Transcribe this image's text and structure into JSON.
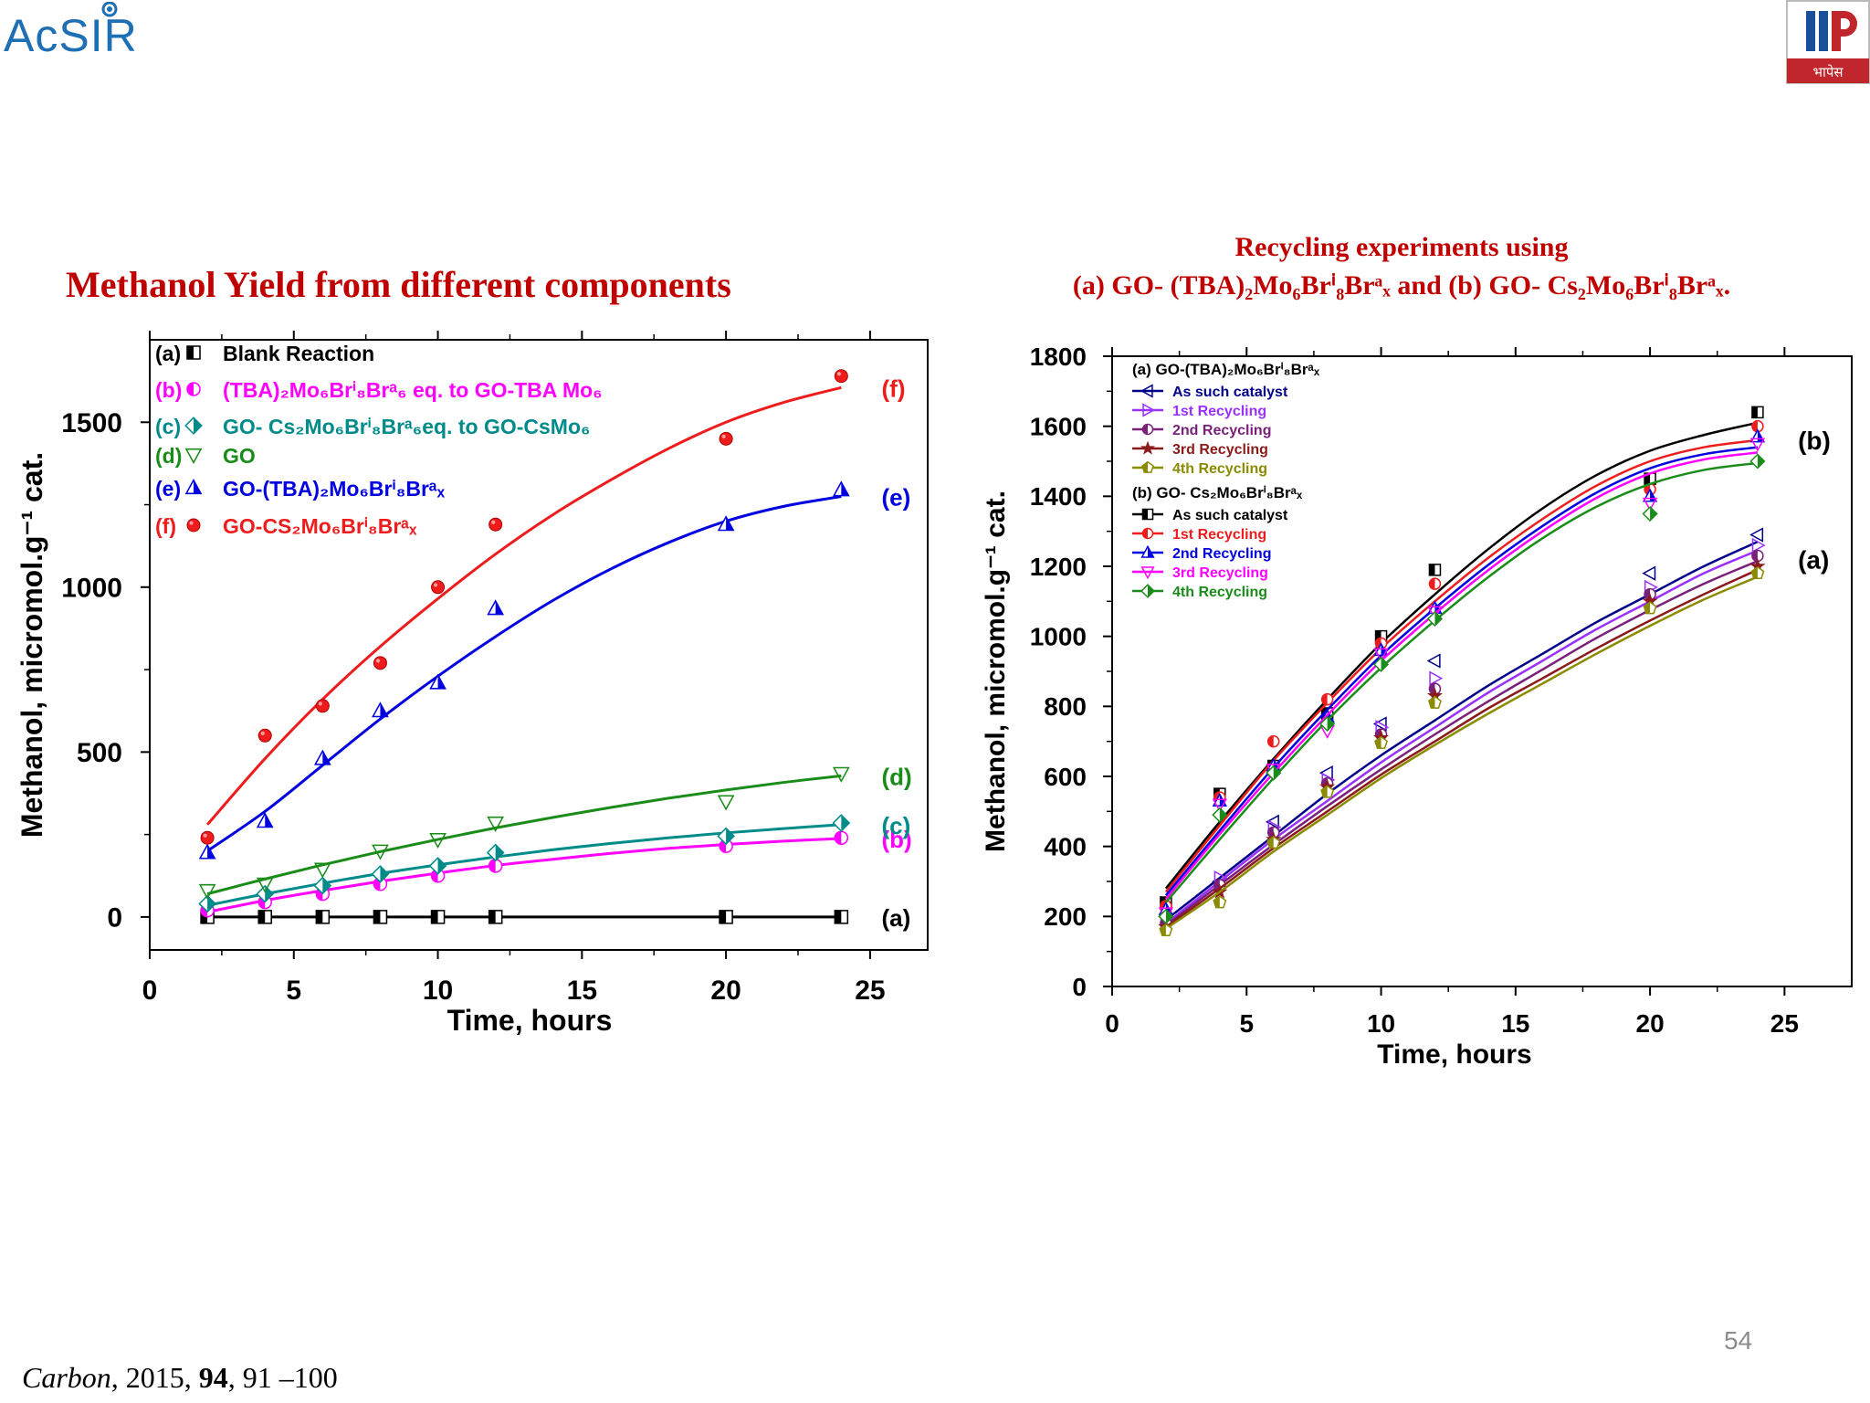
{
  "header": {
    "logo_left_text": "AcSIR",
    "logo_right_text": "भापेस"
  },
  "colors": {
    "title_red": "#c00000",
    "black": "#000000",
    "magenta": "#ff00ff",
    "teal": "#008b8b",
    "green": "#1a8c1a",
    "blue": "#0000e0",
    "red": "#ee1c1c",
    "navy": "#00008b",
    "violet": "#9b30ff",
    "purple": "#7a1f7a",
    "maroon": "#8b1a1a",
    "olive": "#8b8b00"
  },
  "slide": {
    "page_number": "54",
    "citation": {
      "journal": "Carbon",
      "year": ", 2015, ",
      "volume": "94",
      "pages": ", 91 –100"
    }
  },
  "chart_data": [
    {
      "type": "scatter",
      "title": "Methanol Yield from different components",
      "xlabel": "Time, hours",
      "ylabel": "Methanol, micromol.g⁻¹ cat.",
      "xlim": [
        0,
        27
      ],
      "ylim": [
        -100,
        1750
      ],
      "xticks": [
        0,
        5,
        10,
        15,
        20,
        25
      ],
      "yticks": [
        0,
        500,
        1000,
        1500
      ],
      "grid": false,
      "legend_position": "top-left",
      "series": [
        {
          "key": "a",
          "tag": "(a)",
          "label": "Blank Reaction",
          "color": "#000000",
          "marker": "square-half",
          "x": [
            2,
            4,
            6,
            8,
            10,
            12,
            20,
            24
          ],
          "y": [
            0,
            0,
            0,
            0,
            0,
            0,
            0,
            0
          ],
          "fit_x": [
            2,
            24
          ],
          "fit_y": [
            0,
            0
          ],
          "end_label": "(a)"
        },
        {
          "key": "b",
          "tag": "(b)",
          "label": "(TBA)₂Mo₆Brⁱ₈Brᵃ₆ eq. to GO-TBA Mo₆",
          "color": "#ff00ff",
          "marker": "circle-half",
          "x": [
            2,
            4,
            6,
            8,
            10,
            12,
            20,
            24
          ],
          "y": [
            20,
            45,
            70,
            100,
            125,
            155,
            215,
            240
          ],
          "fit_x": [
            2,
            4,
            6,
            8,
            10,
            12,
            14,
            16,
            18,
            20,
            22,
            24
          ],
          "fit_y": [
            15,
            50,
            80,
            108,
            133,
            156,
            175,
            193,
            208,
            220,
            230,
            238
          ],
          "end_label": "(b)"
        },
        {
          "key": "c",
          "tag": "(c)",
          "label": "GO- Cs₂Mo₆Brⁱ₈Brᵃ₆eq. to GO-CsMo₆",
          "color": "#008b8b",
          "marker": "diamond-half",
          "x": [
            2,
            4,
            6,
            8,
            10,
            12,
            20,
            24
          ],
          "y": [
            40,
            70,
            95,
            130,
            155,
            195,
            245,
            285
          ],
          "fit_x": [
            2,
            4,
            6,
            8,
            10,
            12,
            14,
            16,
            18,
            20,
            22,
            24
          ],
          "fit_y": [
            35,
            70,
            102,
            132,
            158,
            182,
            204,
            223,
            240,
            255,
            268,
            280
          ],
          "end_label": "(c)"
        },
        {
          "key": "d",
          "tag": "(d)",
          "label": "GO",
          "color": "#1a8c1a",
          "marker": "triangle-down",
          "x": [
            2,
            4,
            6,
            8,
            10,
            12,
            20,
            24
          ],
          "y": [
            80,
            100,
            145,
            200,
            235,
            285,
            350,
            435
          ],
          "fit_x": [
            2,
            4,
            6,
            8,
            10,
            12,
            14,
            16,
            18,
            20,
            22,
            24
          ],
          "fit_y": [
            70,
            115,
            158,
            198,
            235,
            270,
            302,
            332,
            360,
            385,
            408,
            428
          ],
          "end_label": "(d)"
        },
        {
          "key": "e",
          "tag": "(e)",
          "label": "GO-(TBA)₂Mo₆Brⁱ₈Brᵃₓ",
          "color": "#0000e0",
          "marker": "triangle-half",
          "x": [
            2,
            4,
            6,
            8,
            10,
            12,
            20,
            24
          ],
          "y": [
            195,
            290,
            480,
            625,
            710,
            935,
            1190,
            1295
          ],
          "fit_x": [
            2,
            4,
            6,
            8,
            10,
            12,
            14,
            16,
            18,
            20,
            22,
            24
          ],
          "fit_y": [
            200,
            320,
            460,
            600,
            730,
            850,
            960,
            1055,
            1135,
            1200,
            1245,
            1275
          ],
          "end_label": "(e)"
        },
        {
          "key": "f",
          "tag": "(f)",
          "label": "GO-CS₂Mo₆Brⁱ₈Brᵃₓ",
          "color": "#ee1c1c",
          "marker": "circle",
          "x": [
            2,
            4,
            6,
            8,
            10,
            12,
            20,
            24
          ],
          "y": [
            240,
            550,
            640,
            770,
            1000,
            1190,
            1450,
            1640
          ],
          "fit_x": [
            2,
            4,
            6,
            8,
            10,
            12,
            14,
            16,
            18,
            20,
            22,
            24
          ],
          "fit_y": [
            280,
            480,
            660,
            820,
            965,
            1100,
            1220,
            1325,
            1420,
            1500,
            1560,
            1605
          ],
          "end_label": "(f)"
        }
      ]
    },
    {
      "type": "line",
      "title": "Recycling experiments using",
      "subtitle": "(a) GO- (TBA)₂Mo₆Brⁱ₈Brᵃₓ and (b) GO- Cs₂Mo₆Brⁱ₈Brᵃₓ.",
      "xlabel": "Time, hours",
      "ylabel": "Methanol, micromol.g⁻¹ cat.",
      "xlim": [
        0,
        27.5
      ],
      "ylim": [
        0,
        1800
      ],
      "xticks": [
        0,
        5,
        10,
        15,
        20,
        25
      ],
      "yticks": [
        0,
        200,
        400,
        600,
        800,
        1000,
        1200,
        1400,
        1600,
        1800
      ],
      "grid": false,
      "legend_position": "top-left",
      "legend_groups": [
        {
          "heading": "(a) GO-(TBA)₂Mo₆Brⁱ₈Brᵃₓ",
          "series_keys": [
            "a0",
            "a1",
            "a2",
            "a3",
            "a4"
          ]
        },
        {
          "heading": "(b) GO- Cs₂Mo₆Brⁱ₈Brᵃₓ",
          "series_keys": [
            "b0",
            "b1",
            "b2",
            "b3",
            "b4"
          ]
        }
      ],
      "group_labels": [
        {
          "text": "(b)",
          "x": 25.5,
          "y": 1560
        },
        {
          "text": "(a)",
          "x": 25.5,
          "y": 1220
        }
      ],
      "series": [
        {
          "key": "a0",
          "name": "As such catalyst",
          "color": "#00008b",
          "marker": "triangle-left",
          "x": [
            2,
            4,
            6,
            8,
            10,
            12,
            20,
            24
          ],
          "y": [
            200,
            300,
            470,
            610,
            750,
            930,
            1180,
            1290
          ],
          "fit_x": [
            2,
            4,
            6,
            8,
            10,
            12,
            14,
            16,
            18,
            20,
            22,
            24
          ],
          "fit_y": [
            190,
            310,
            430,
            550,
            660,
            760,
            860,
            950,
            1040,
            1120,
            1200,
            1270
          ]
        },
        {
          "key": "a1",
          "name": "1st Recycling",
          "color": "#9b30ff",
          "marker": "triangle-right",
          "x": [
            2,
            4,
            6,
            8,
            10,
            12,
            20,
            24
          ],
          "y": [
            190,
            310,
            455,
            590,
            740,
            880,
            1140,
            1260
          ],
          "fit_x": [
            2,
            4,
            6,
            8,
            10,
            12,
            14,
            16,
            18,
            20,
            22,
            24
          ],
          "fit_y": [
            180,
            300,
            420,
            530,
            640,
            740,
            840,
            930,
            1020,
            1100,
            1180,
            1245
          ]
        },
        {
          "key": "a2",
          "name": "2nd Recycling",
          "color": "#7a1f7a",
          "marker": "circle-half",
          "x": [
            2,
            4,
            6,
            8,
            10,
            12,
            20,
            24
          ],
          "y": [
            180,
            290,
            440,
            580,
            720,
            850,
            1120,
            1230
          ],
          "fit_x": [
            2,
            4,
            6,
            8,
            10,
            12,
            14,
            16,
            18,
            20,
            22,
            24
          ],
          "fit_y": [
            175,
            290,
            405,
            515,
            620,
            720,
            815,
            905,
            995,
            1075,
            1150,
            1215
          ]
        },
        {
          "key": "a3",
          "name": "3rd Recycling",
          "color": "#8b1a1a",
          "marker": "star",
          "x": [
            2,
            4,
            6,
            8,
            10,
            12,
            20,
            24
          ],
          "y": [
            170,
            270,
            420,
            570,
            710,
            830,
            1100,
            1200
          ],
          "fit_x": [
            2,
            4,
            6,
            8,
            10,
            12,
            14,
            16,
            18,
            20,
            22,
            24
          ],
          "fit_y": [
            170,
            280,
            395,
            500,
            605,
            700,
            795,
            880,
            965,
            1045,
            1120,
            1190
          ]
        },
        {
          "key": "a4",
          "name": "4th Recycling",
          "color": "#8b8b00",
          "marker": "pentagon-half",
          "x": [
            2,
            4,
            6,
            8,
            10,
            12,
            20,
            24
          ],
          "y": [
            160,
            240,
            410,
            555,
            695,
            810,
            1080,
            1180
          ],
          "fit_x": [
            2,
            4,
            6,
            8,
            10,
            12,
            14,
            16,
            18,
            20,
            22,
            24
          ],
          "fit_y": [
            165,
            270,
            385,
            490,
            595,
            690,
            780,
            865,
            950,
            1030,
            1105,
            1170
          ]
        },
        {
          "key": "b0",
          "name": "As such catalyst",
          "color": "#000000",
          "marker": "square-half",
          "x": [
            2,
            4,
            6,
            8,
            10,
            12,
            20,
            24
          ],
          "y": [
            240,
            550,
            630,
            780,
            1000,
            1190,
            1450,
            1640
          ],
          "fit_x": [
            2,
            4,
            6,
            8,
            10,
            12,
            14,
            16,
            18,
            20,
            22,
            24
          ],
          "fit_y": [
            280,
            470,
            650,
            820,
            980,
            1120,
            1250,
            1365,
            1460,
            1530,
            1575,
            1610
          ]
        },
        {
          "key": "b1",
          "name": "1st Recycling",
          "color": "#ee1c1c",
          "marker": "circle-half",
          "x": [
            2,
            4,
            6,
            8,
            10,
            12,
            20,
            24
          ],
          "y": [
            230,
            540,
            700,
            820,
            980,
            1150,
            1420,
            1600
          ],
          "fit_x": [
            2,
            4,
            6,
            8,
            10,
            12,
            14,
            16,
            18,
            20,
            22,
            24
          ],
          "fit_y": [
            270,
            460,
            645,
            810,
            965,
            1100,
            1225,
            1335,
            1430,
            1500,
            1540,
            1560
          ]
        },
        {
          "key": "b2",
          "name": "2nd Recycling",
          "color": "#0000e0",
          "marker": "triangle-half",
          "x": [
            2,
            4,
            6,
            8,
            10,
            12,
            20,
            24
          ],
          "y": [
            220,
            530,
            630,
            770,
            960,
            1080,
            1400,
            1570
          ],
          "fit_x": [
            2,
            4,
            6,
            8,
            10,
            12,
            14,
            16,
            18,
            20,
            22,
            24
          ],
          "fit_y": [
            260,
            445,
            625,
            790,
            945,
            1080,
            1205,
            1315,
            1410,
            1480,
            1520,
            1540
          ]
        },
        {
          "key": "b3",
          "name": "3rd Recycling",
          "color": "#ff00ff",
          "marker": "triangle-down",
          "x": [
            2,
            4,
            6,
            8,
            10,
            12,
            20,
            24
          ],
          "y": [
            210,
            520,
            620,
            730,
            950,
            1070,
            1380,
            1550
          ],
          "fit_x": [
            2,
            4,
            6,
            8,
            10,
            12,
            14,
            16,
            18,
            20,
            22,
            24
          ],
          "fit_y": [
            250,
            435,
            610,
            775,
            930,
            1065,
            1190,
            1300,
            1395,
            1465,
            1505,
            1525
          ]
        },
        {
          "key": "b4",
          "name": "4th Recycling",
          "color": "#1a8c1a",
          "marker": "diamond-half",
          "x": [
            2,
            4,
            6,
            8,
            10,
            12,
            20,
            24
          ],
          "y": [
            200,
            490,
            610,
            750,
            920,
            1050,
            1350,
            1500
          ],
          "fit_x": [
            2,
            4,
            6,
            8,
            10,
            12,
            14,
            16,
            18,
            20,
            22,
            24
          ],
          "fit_y": [
            240,
            420,
            595,
            760,
            910,
            1045,
            1170,
            1280,
            1370,
            1435,
            1475,
            1495
          ]
        }
      ]
    }
  ]
}
